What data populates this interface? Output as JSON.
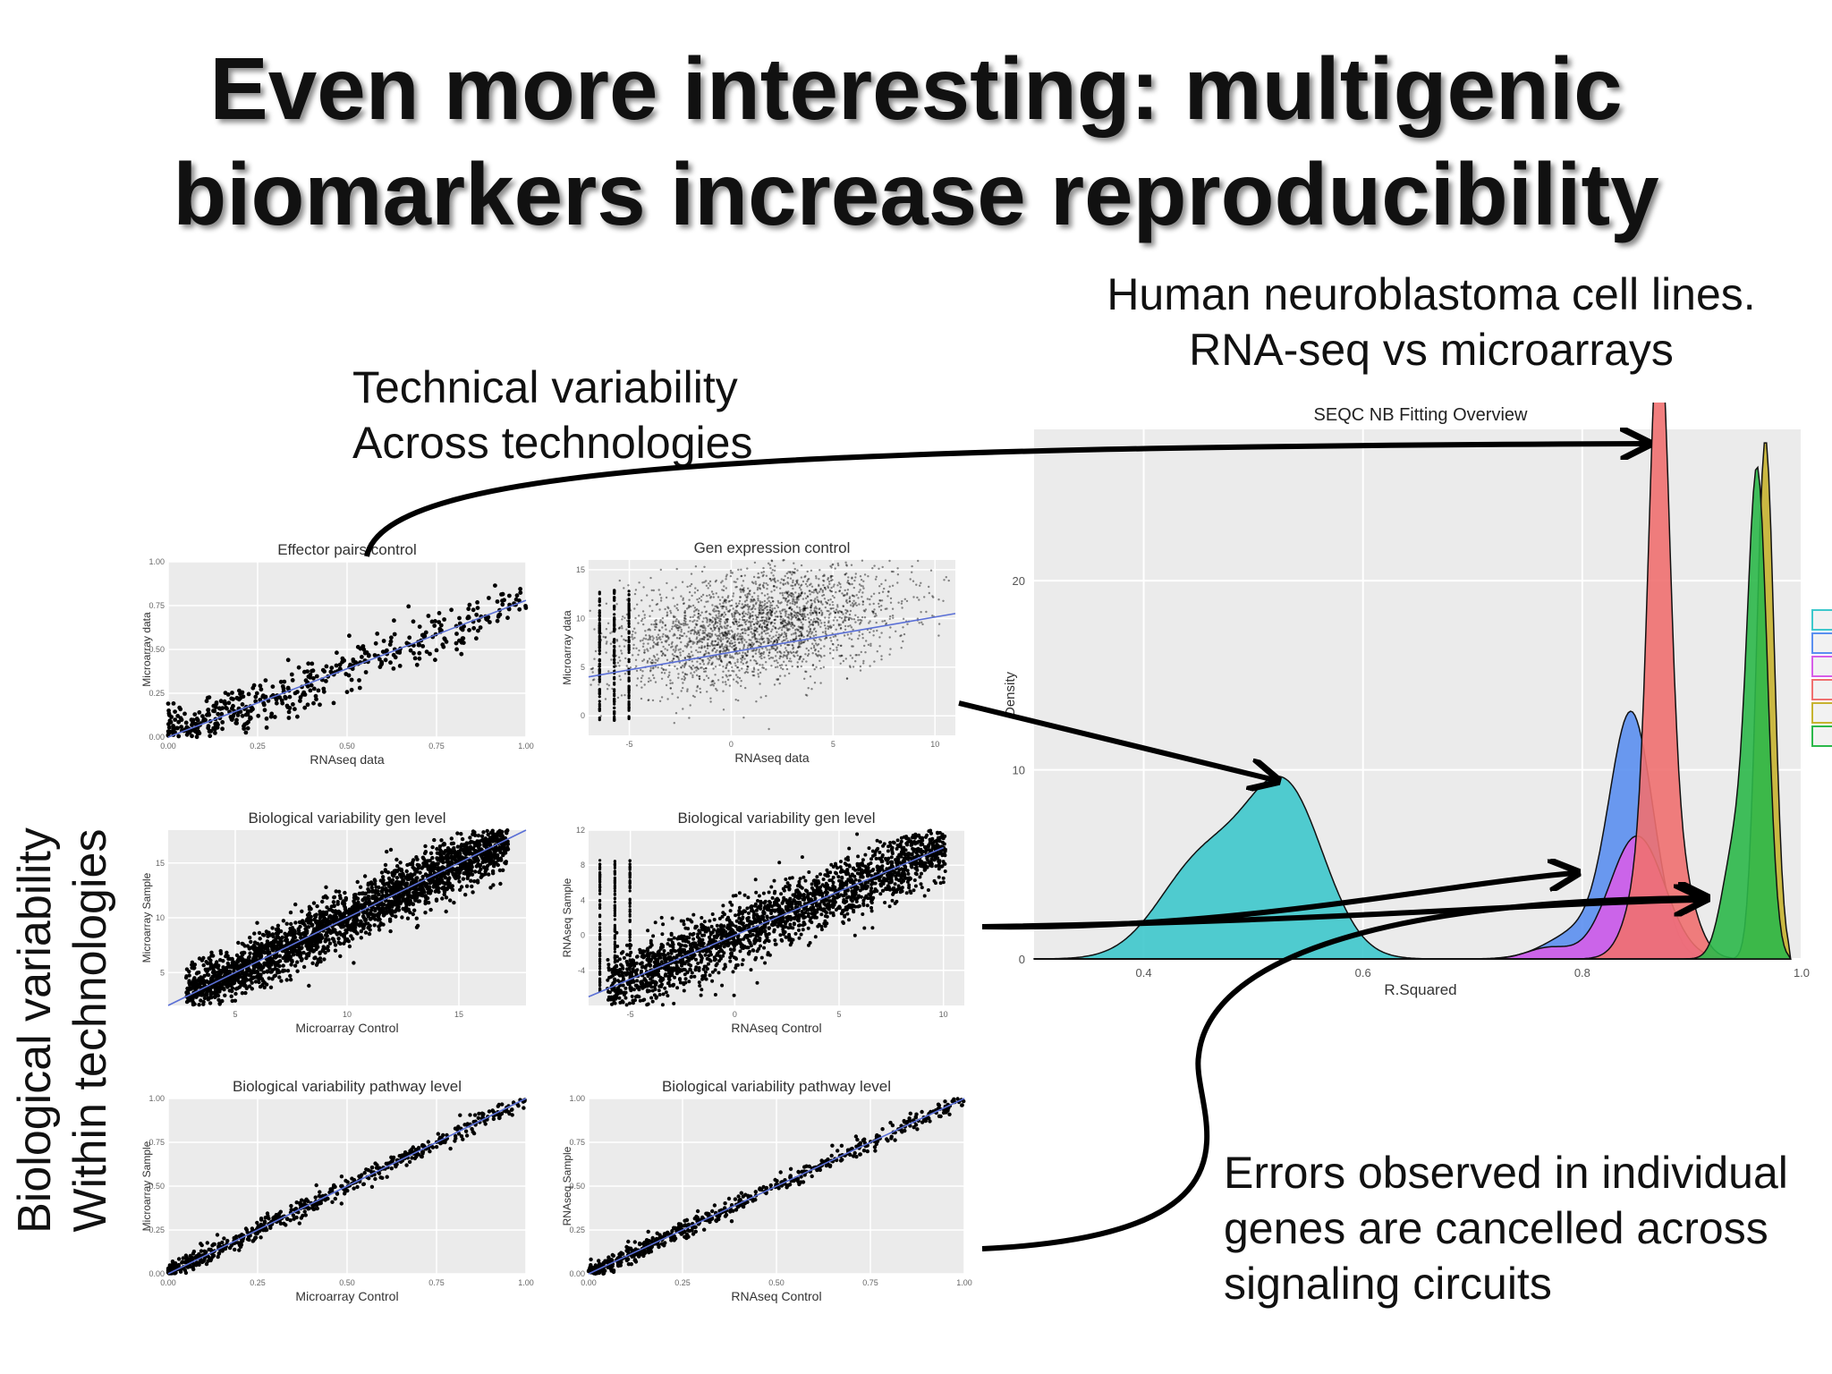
{
  "slide": {
    "title_line1": "Even more interesting: multigenic",
    "title_line2": "biomarkers increase reproducibility",
    "note_tech_line1": "Technical variability",
    "note_tech_line2": "Across technologies",
    "note_human_line1": "Human neuroblastoma cell lines.",
    "note_human_line2": "RNA-seq vs microarrays",
    "note_bio_line1": "Biological variability",
    "note_bio_line2": "Within technologies",
    "note_errors_line1": "Errors observed in individual",
    "note_errors_line2": "genes are cancelled across",
    "note_errors_line3": "signaling circuits"
  },
  "chart_data": [
    {
      "type": "area",
      "title": "SEQC NB Fitting Overview",
      "xlabel": "R.Squared",
      "ylabel": "Density",
      "xlim": [
        0.3,
        1.0
      ],
      "ylim": [
        0,
        28
      ],
      "x_ticks": [
        "0.4",
        "0.6",
        "0.8",
        "1.0"
      ],
      "x_tick_values": [
        0.4,
        0.6,
        0.8,
        1.0
      ],
      "y_ticks": [
        "0",
        "10",
        "20"
      ],
      "y_tick_values": [
        0,
        10,
        20
      ],
      "grid": true,
      "legend_placement": "right",
      "series": [
        {
          "color": "#3ec8cc",
          "peaks": [
            [
              0.455,
              5.2,
              0.04
            ],
            [
              0.53,
              8.6,
              0.035
            ]
          ]
        },
        {
          "color": "#5b8ff0",
          "peaks": [
            [
              0.8,
              1.5,
              0.03
            ],
            [
              0.845,
              12.6,
              0.02
            ]
          ]
        },
        {
          "color": "#d65ee8",
          "peaks": [
            [
              0.77,
              0.6,
              0.02
            ],
            [
              0.85,
              6.5,
              0.025
            ]
          ]
        },
        {
          "color": "#f07070",
          "peaks": [
            [
              0.87,
              25.0,
              0.009
            ],
            [
              0.872,
              9.0,
              0.02
            ]
          ]
        },
        {
          "color": "#c6b330",
          "peaks": [
            [
              0.967,
              27.5,
              0.008
            ]
          ]
        },
        {
          "color": "#2cb84a",
          "peaks": [
            [
              0.96,
              24.5,
              0.009
            ],
            [
              0.94,
              6.0,
              0.012
            ]
          ]
        }
      ]
    },
    {
      "type": "scatter",
      "title": "Effector pairs control",
      "xlabel": "RNAseq data",
      "ylabel": "Microarray data",
      "x_ticks": [
        "0.00",
        "0.25",
        "0.50",
        "0.75",
        "1.00"
      ],
      "y_ticks": [
        "0.00",
        "0.25",
        "0.50",
        "0.75",
        "1.00"
      ],
      "xlim": [
        0,
        1
      ],
      "ylim": [
        0,
        1
      ],
      "grid": true,
      "fit_line": {
        "x": [
          0,
          1
        ],
        "y": [
          0,
          0.78
        ]
      }
    },
    {
      "type": "scatter",
      "title": "Gen expression control",
      "xlabel": "RNAseq data",
      "ylabel": "Microarray data",
      "x_ticks": [
        "-5",
        "0",
        "5",
        "10"
      ],
      "y_ticks": [
        "0",
        "5",
        "10",
        "15"
      ],
      "xlim": [
        -7,
        11
      ],
      "ylim": [
        -2,
        16
      ],
      "grid": true,
      "fit_line": {
        "x": [
          -7,
          11
        ],
        "y": [
          4,
          10.5
        ]
      }
    },
    {
      "type": "scatter",
      "title": "Biological variability gen level",
      "xlabel": "Microarray Control",
      "ylabel": "Microarray Sample",
      "x_ticks": [
        "5",
        "10",
        "15"
      ],
      "y_ticks": [
        "5",
        "10",
        "15"
      ],
      "xlim": [
        2,
        18
      ],
      "ylim": [
        2,
        18
      ],
      "grid": true,
      "fit_line": {
        "x": [
          2,
          18
        ],
        "y": [
          2,
          18
        ]
      }
    },
    {
      "type": "scatter",
      "title": "Biological variability gen level",
      "xlabel": "RNAseq Control",
      "ylabel": "RNAseq Sample",
      "x_ticks": [
        "-5",
        "0",
        "5",
        "10"
      ],
      "y_ticks": [
        "-4",
        "0",
        "4",
        "8",
        "12"
      ],
      "xlim": [
        -7,
        11
      ],
      "ylim": [
        -8,
        12
      ],
      "grid": true,
      "fit_line": {
        "x": [
          -7,
          10
        ],
        "y": [
          -7,
          10
        ]
      }
    },
    {
      "type": "scatter",
      "title": "Biological variability pathway level",
      "xlabel": "Microarray Control",
      "ylabel": "Microarray Sample",
      "x_ticks": [
        "0.00",
        "0.25",
        "0.50",
        "0.75",
        "1.00"
      ],
      "y_ticks": [
        "0.00",
        "0.25",
        "0.50",
        "0.75",
        "1.00"
      ],
      "xlim": [
        0,
        1
      ],
      "ylim": [
        0,
        1
      ],
      "grid": true,
      "fit_line": {
        "x": [
          0,
          1
        ],
        "y": [
          0,
          1
        ]
      }
    },
    {
      "type": "scatter",
      "title": "Biological variability pathway level",
      "xlabel": "RNAseq Control",
      "ylabel": "RNAseq Sample",
      "x_ticks": [
        "0.00",
        "0.25",
        "0.50",
        "0.75",
        "1.00"
      ],
      "y_ticks": [
        "0.00",
        "0.25",
        "0.50",
        "0.75",
        "1.00"
      ],
      "xlim": [
        0,
        1
      ],
      "ylim": [
        0,
        1
      ],
      "grid": true,
      "fit_line": {
        "x": [
          0,
          1
        ],
        "y": [
          0,
          1
        ]
      }
    }
  ]
}
